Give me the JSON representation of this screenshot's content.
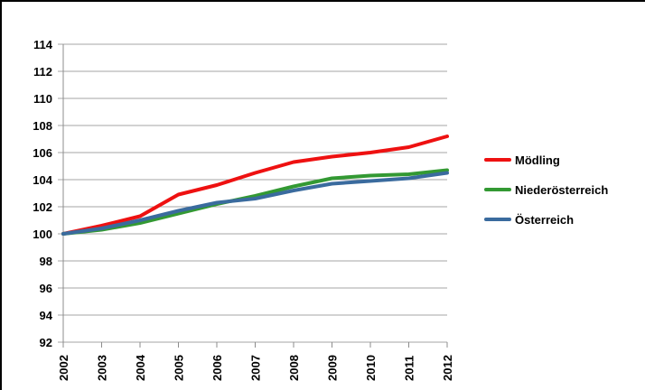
{
  "chart": {
    "background": "#ffffff",
    "grid_color": "#a6a6a6",
    "axis_color": "#8c8c8c",
    "label_color": "#000000",
    "frame_border_color": "#000000"
  },
  "chart_data": {
    "type": "line",
    "title": "",
    "xlabel": "",
    "ylabel": "",
    "categories": [
      "2002",
      "2003",
      "2004",
      "2005",
      "2006",
      "2007",
      "2008",
      "2009",
      "2010",
      "2011",
      "2012"
    ],
    "series": [
      {
        "name": "Mödling",
        "color": "#ee1111",
        "values": [
          100,
          100.6,
          101.3,
          102.9,
          103.6,
          104.5,
          105.3,
          105.7,
          106.0,
          106.4,
          107.2
        ]
      },
      {
        "name": "Niederösterreich",
        "color": "#339933",
        "values": [
          100,
          100.3,
          100.8,
          101.5,
          102.2,
          102.8,
          103.5,
          104.1,
          104.3,
          104.4,
          104.7
        ]
      },
      {
        "name": "Österreich",
        "color": "#3a6b9e",
        "values": [
          100,
          100.4,
          101.0,
          101.7,
          102.3,
          102.6,
          103.2,
          103.7,
          103.9,
          104.1,
          104.5
        ]
      }
    ],
    "ylim": [
      92,
      114
    ],
    "y_ticks": [
      92,
      94,
      96,
      98,
      100,
      102,
      104,
      106,
      108,
      110,
      112,
      114
    ],
    "grid": true,
    "legend_position": "right",
    "base_year_value": 100
  }
}
